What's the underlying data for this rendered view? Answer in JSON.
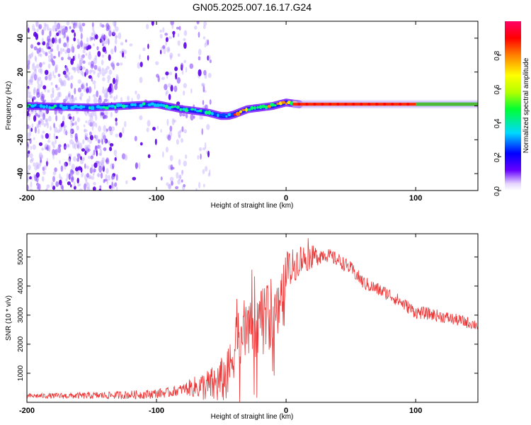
{
  "title": "GN05.2025.007.16.17.G24",
  "chart_data": [
    {
      "type": "heatmap",
      "xlabel": "Height of straight line (km)",
      "ylabel": "Frequency (Hz)",
      "xlim": [
        -200,
        148
      ],
      "ylim": [
        -50,
        50
      ],
      "xticks": [
        -200,
        -100,
        0,
        100
      ],
      "yticks": [
        -40,
        -20,
        0,
        20,
        40
      ],
      "colorbar": {
        "label": "Normalized spectral amplitude",
        "range": [
          0,
          1
        ],
        "ticks": [
          "0.0",
          "0.2",
          "0.4",
          "0.6",
          "0.8"
        ],
        "colors": [
          "#ffffff",
          "#6600ff",
          "#0000ff",
          "#00d9ff",
          "#00ff33",
          "#b3ff00",
          "#ffff00",
          "#ff8000",
          "#ff0000",
          "#ff0066"
        ]
      },
      "ridge": {
        "x": [
          -200,
          -150,
          -100,
          -80,
          -60,
          -50,
          -45,
          -40,
          -30,
          -20,
          -10,
          0,
          10,
          50,
          100,
          148
        ],
        "freq": [
          0,
          -1,
          1,
          -2,
          -4,
          -6,
          -6,
          -5,
          -2,
          -1,
          0,
          2,
          1,
          1,
          1,
          1
        ]
      },
      "scatter_extent_x": [
        -200,
        -58
      ]
    },
    {
      "type": "line",
      "xlabel": "Height of straight line (km)",
      "ylabel": "SNR (10 * v/v)",
      "xlim": [
        -200,
        148
      ],
      "ylim": [
        0,
        5800
      ],
      "xticks": [
        -200,
        -100,
        0,
        100
      ],
      "yticks": [
        1000,
        2000,
        3000,
        4000,
        5000
      ],
      "color": "#ee3333",
      "envelope": {
        "x": [
          -200,
          -150,
          -110,
          -90,
          -75,
          -55,
          -45,
          -38,
          -30,
          -25,
          -20,
          -15,
          -12,
          -8,
          -5,
          0,
          10,
          20,
          30,
          40,
          50,
          60,
          70,
          80,
          90,
          100,
          110,
          120,
          130,
          140,
          148
        ],
        "y": [
          220,
          230,
          270,
          340,
          500,
          600,
          900,
          2200,
          2600,
          2500,
          2800,
          3000,
          2700,
          3100,
          3400,
          4400,
          4900,
          5000,
          5100,
          4900,
          4600,
          4100,
          3900,
          3700,
          3400,
          3100,
          3050,
          2950,
          2850,
          2750,
          2650
        ]
      },
      "noise_amp": {
        "x": [
          -200,
          -80,
          -45,
          -30,
          -10,
          0,
          30,
          80,
          148
        ],
        "amp": [
          80,
          180,
          900,
          1100,
          1000,
          700,
          250,
          230,
          200
        ]
      }
    }
  ]
}
